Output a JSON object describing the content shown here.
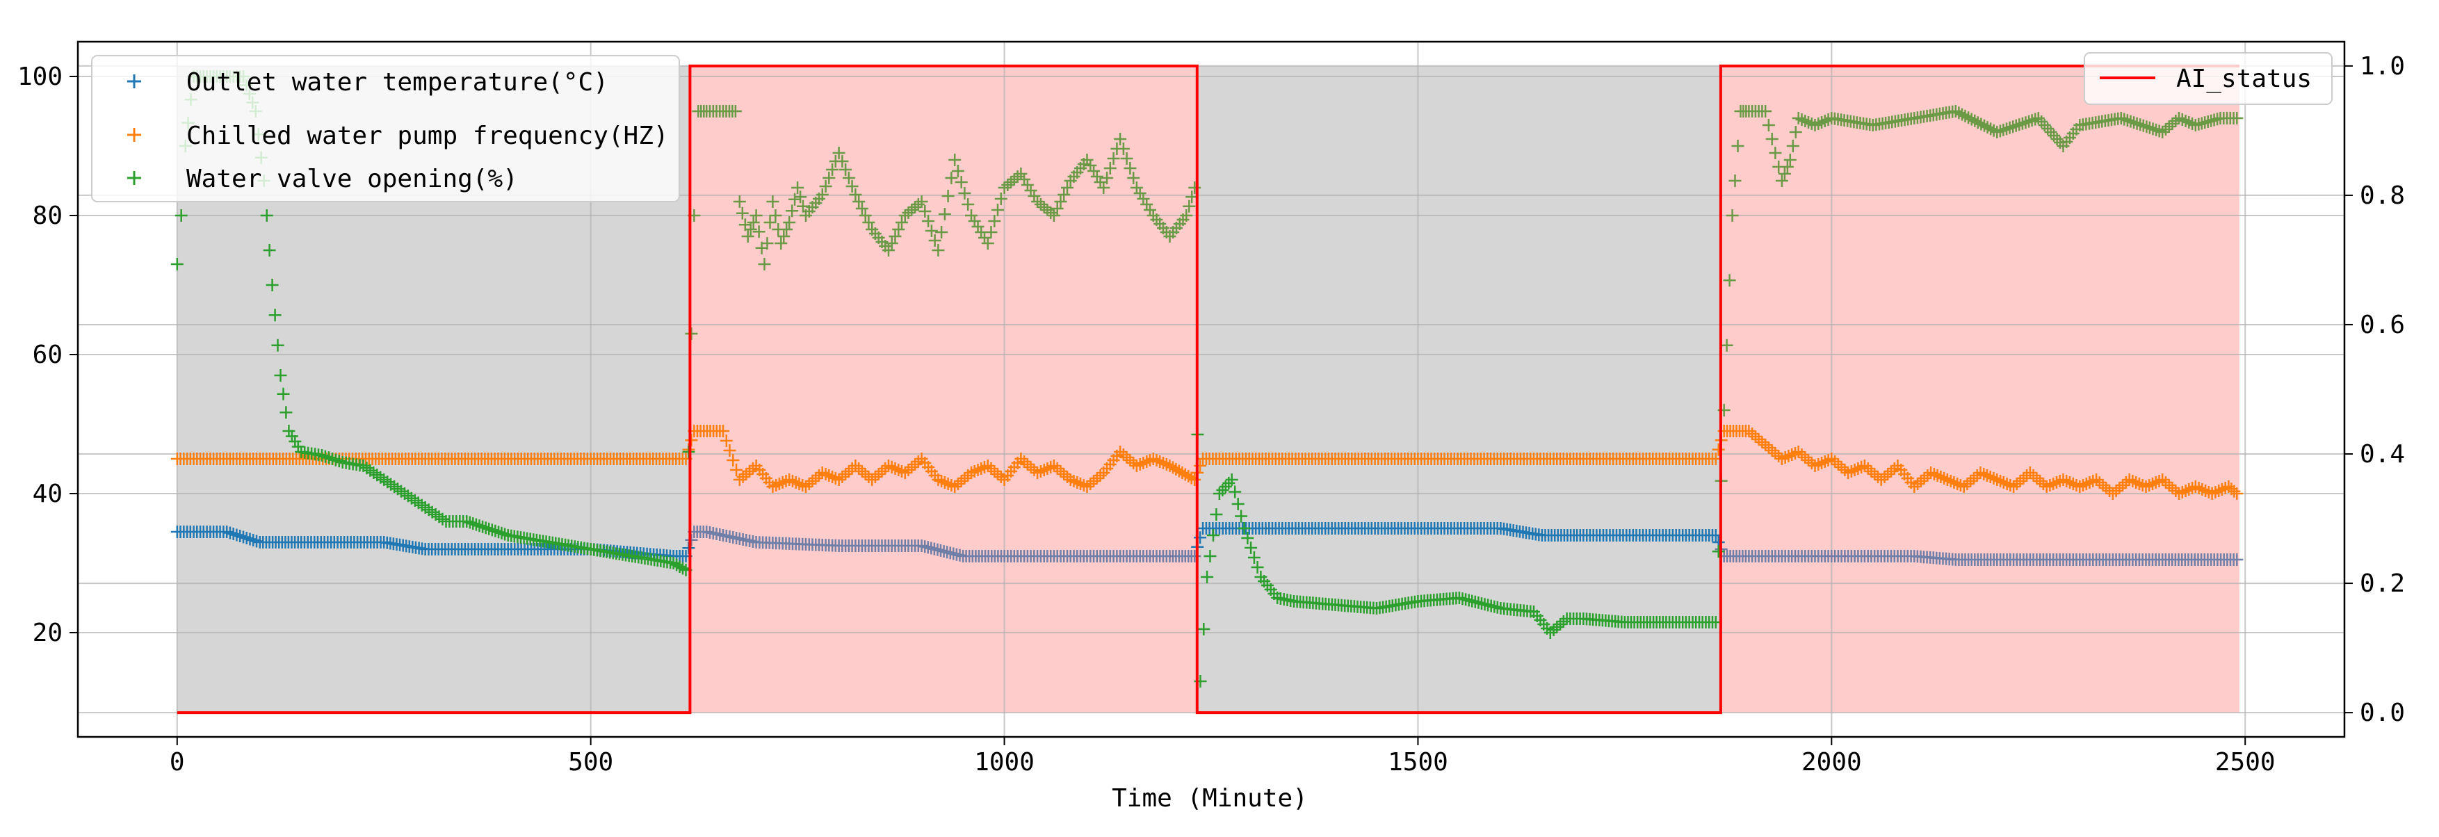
{
  "chart_data": {
    "type": "scatter",
    "xlabel": "Time (Minute)",
    "x_ticks": [
      0,
      500,
      1000,
      1500,
      2000,
      2500
    ],
    "xlim": [
      -120,
      2620
    ],
    "y_ticks": [
      20,
      40,
      60,
      80,
      100
    ],
    "ylim": [
      5,
      105
    ],
    "y2_ticks": [
      0.0,
      0.2,
      0.4,
      0.6,
      0.8,
      1.0
    ],
    "y2_tick_labels": [
      "0.0",
      "0.2",
      "0.4",
      "0.6",
      "0.8",
      "1.0"
    ],
    "y2lim": [
      -0.0375,
      1.0375
    ],
    "grid": true,
    "legend_left": {
      "placement": "top-left",
      "entries": [
        {
          "label": "Outlet water temperature(°C)",
          "color": "#1f77b4"
        },
        {
          "label": "Chilled water pump frequency(HZ)",
          "color": "#ff7f0e"
        },
        {
          "label": "Water valve opening(%)",
          "color": "#2ca02c"
        }
      ]
    },
    "legend_right": {
      "placement": "top-right",
      "entries": [
        {
          "label": "AI_status",
          "color": "#ff0000"
        }
      ]
    },
    "shaded_regions": [
      {
        "x_start": 0,
        "x_end": 620,
        "status": 0,
        "color": "#d6d6d6"
      },
      {
        "x_start": 620,
        "x_end": 1233,
        "status": 1,
        "color": "#ffcccc"
      },
      {
        "x_start": 1233,
        "x_end": 1866,
        "status": 0,
        "color": "#d6d6d6"
      },
      {
        "x_start": 1866,
        "x_end": 2493,
        "status": 1,
        "color": "#ffcccc"
      }
    ],
    "ai_status": {
      "name": "AI_status",
      "color": "#ff0000",
      "x": [
        0,
        620,
        620,
        1233,
        1233,
        1866,
        1866,
        2493
      ],
      "y": [
        0,
        0,
        1,
        1,
        0,
        0,
        1,
        1
      ]
    },
    "series": [
      {
        "name": "Outlet water temperature(°C)",
        "color": "#1f77b4",
        "color_ai": "#6f7fa8",
        "x": [
          0,
          60,
          100,
          150,
          250,
          300,
          400,
          500,
          600,
          615,
          625,
          640,
          700,
          800,
          900,
          950,
          1000,
          1100,
          1200,
          1230,
          1240,
          1300,
          1400,
          1500,
          1600,
          1650,
          1700,
          1800,
          1860,
          1870,
          1900,
          2000,
          2100,
          2150,
          2200,
          2300,
          2400,
          2490
        ],
        "y": [
          34.5,
          34.5,
          33.0,
          33.0,
          33.0,
          32.0,
          32.0,
          32.0,
          31.0,
          31.0,
          34.5,
          34.5,
          33.0,
          32.5,
          32.5,
          31.0,
          31.0,
          31.0,
          31.0,
          31.0,
          35.0,
          35.0,
          35.0,
          35.0,
          35.0,
          34.0,
          34.0,
          34.0,
          34.0,
          31.0,
          31.0,
          31.0,
          31.0,
          30.5,
          30.5,
          30.5,
          30.5,
          30.5
        ]
      },
      {
        "name": "Chilled water pump frequency(HZ)",
        "color": "#ff7f0e",
        "x": [
          0,
          100,
          200,
          300,
          400,
          500,
          615,
          625,
          660,
          680,
          700,
          720,
          740,
          760,
          780,
          800,
          820,
          840,
          860,
          880,
          900,
          920,
          940,
          960,
          980,
          1000,
          1020,
          1040,
          1060,
          1080,
          1100,
          1120,
          1140,
          1160,
          1180,
          1200,
          1230,
          1240,
          1300,
          1400,
          1500,
          1600,
          1700,
          1800,
          1860,
          1870,
          1900,
          1920,
          1940,
          1960,
          1980,
          2000,
          2020,
          2040,
          2060,
          2080,
          2100,
          2120,
          2140,
          2160,
          2180,
          2200,
          2220,
          2240,
          2260,
          2280,
          2300,
          2320,
          2340,
          2360,
          2380,
          2400,
          2420,
          2440,
          2460,
          2480,
          2490
        ],
        "y": [
          45,
          45,
          45,
          45,
          45,
          45,
          45,
          49,
          49,
          42,
          44,
          41,
          42,
          41,
          43,
          42,
          44,
          42,
          44,
          43,
          45,
          42,
          41,
          43,
          44,
          42,
          45,
          43,
          44,
          42,
          41,
          43,
          46,
          44,
          45,
          44,
          42,
          45,
          45,
          45,
          45,
          45,
          45,
          45,
          45,
          49,
          49,
          47,
          45,
          46,
          44,
          45,
          43,
          44,
          42,
          44,
          41,
          43,
          42,
          41,
          43,
          42,
          41,
          43,
          41,
          42,
          41,
          42,
          40,
          42,
          41,
          42,
          40,
          41,
          40,
          41,
          40
        ]
      },
      {
        "name": "Water valve opening(%)",
        "color": "#2ca02c",
        "color_ai": "#6a9a45",
        "x": [
          0,
          5,
          10,
          20,
          40,
          60,
          80,
          95,
          105,
          115,
          125,
          135,
          150,
          175,
          200,
          225,
          250,
          275,
          300,
          325,
          350,
          400,
          450,
          500,
          550,
          600,
          615,
          625,
          630,
          640,
          660,
          675,
          680,
          690,
          700,
          710,
          720,
          730,
          740,
          750,
          760,
          780,
          800,
          820,
          840,
          860,
          880,
          900,
          920,
          940,
          960,
          980,
          1000,
          1020,
          1040,
          1060,
          1080,
          1100,
          1120,
          1140,
          1160,
          1180,
          1200,
          1220,
          1230,
          1237,
          1245,
          1260,
          1275,
          1290,
          1310,
          1330,
          1350,
          1400,
          1450,
          1500,
          1550,
          1600,
          1640,
          1660,
          1680,
          1700,
          1750,
          1800,
          1860,
          1870,
          1880,
          1890,
          1900,
          1920,
          1940,
          1950,
          1960,
          1980,
          2000,
          2050,
          2100,
          2150,
          2200,
          2250,
          2280,
          2300,
          2350,
          2400,
          2420,
          2440,
          2470,
          2490
        ],
        "y": [
          73,
          80,
          90,
          100,
          100,
          100,
          100,
          95,
          85,
          70,
          57,
          49,
          46,
          45.5,
          44.5,
          44,
          42,
          40,
          38,
          36,
          36,
          34,
          33,
          32,
          31,
          30,
          29,
          80,
          95,
          95,
          95,
          95,
          82,
          77,
          80,
          73,
          82,
          76,
          79,
          84,
          80,
          83,
          89,
          83,
          78,
          75,
          80,
          82,
          75,
          88,
          80,
          76,
          84,
          86,
          82,
          80,
          85,
          88,
          84,
          91,
          84,
          80,
          77,
          80,
          84,
          13,
          28,
          40,
          42,
          35,
          28,
          25,
          24.5,
          24,
          23.5,
          24.5,
          25,
          23.5,
          23,
          20,
          22,
          22,
          21.5,
          21.5,
          21.5,
          52,
          80,
          95,
          95,
          95,
          85,
          88,
          94,
          93,
          94,
          93,
          94,
          95,
          92,
          94,
          90,
          93,
          94,
          92,
          94,
          93,
          94,
          94
        ]
      }
    ]
  }
}
